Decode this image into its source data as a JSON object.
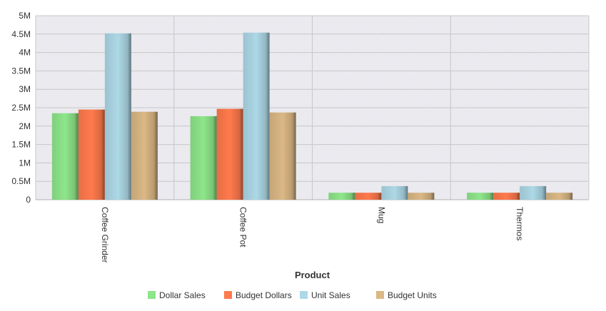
{
  "chart_data": {
    "type": "bar",
    "title": "",
    "xlabel": "Product",
    "ylabel": "",
    "categories": [
      "Coffee Grinder",
      "Coffee Pot",
      "Mug",
      "Thermos"
    ],
    "series": [
      {
        "name": "Dollar Sales",
        "color": "#8ee68a",
        "values": [
          2350000,
          2270000,
          190000,
          190000
        ]
      },
      {
        "name": "Budget Dollars",
        "color": "#ff7a4d",
        "values": [
          2450000,
          2470000,
          190000,
          190000
        ]
      },
      {
        "name": "Unit Sales",
        "color": "#add8e6",
        "values": [
          4520000,
          4540000,
          370000,
          370000
        ]
      },
      {
        "name": "Budget Units",
        "color": "#dbb885",
        "values": [
          2390000,
          2370000,
          190000,
          190000
        ]
      }
    ],
    "ylim": [
      0,
      5000000
    ],
    "y_ticks": [
      {
        "value": 0,
        "label": "0"
      },
      {
        "value": 500000,
        "label": "0.5M"
      },
      {
        "value": 1000000,
        "label": "1M"
      },
      {
        "value": 1500000,
        "label": "1.5M"
      },
      {
        "value": 2000000,
        "label": "2M"
      },
      {
        "value": 2500000,
        "label": "2.5M"
      },
      {
        "value": 3000000,
        "label": "3M"
      },
      {
        "value": 3500000,
        "label": "3.5M"
      },
      {
        "value": 4000000,
        "label": "4M"
      },
      {
        "value": 4500000,
        "label": "4.5M"
      },
      {
        "value": 5000000,
        "label": "5M"
      }
    ],
    "grid": true,
    "legend_position": "bottom",
    "plot_background": "#ebebf0",
    "grid_color": "#c8c8c8"
  }
}
